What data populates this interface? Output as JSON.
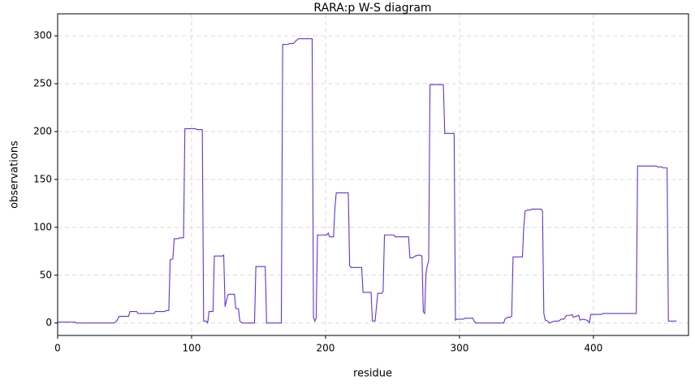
{
  "chart_data": {
    "type": "line",
    "title": "RARA:p W-S diagram",
    "xlabel": "residue",
    "ylabel": "observations",
    "xlim": [
      0,
      471
    ],
    "ylim": [
      -13,
      323
    ],
    "xticks": [
      0,
      100,
      200,
      300,
      400
    ],
    "yticks": [
      0,
      50,
      100,
      150,
      200,
      250,
      300
    ],
    "grid": true,
    "series": [
      {
        "name": "RARA:p",
        "color": "#6233d6",
        "x": [
          0,
          13,
          14,
          42,
          44,
          46,
          53,
          54,
          59,
          60,
          72,
          73,
          80,
          81,
          83,
          84,
          86,
          87,
          90,
          91,
          94,
          95,
          103,
          104,
          108,
          109,
          111,
          112,
          113,
          116,
          117,
          123,
          124,
          125,
          127,
          128,
          132,
          133,
          135,
          136,
          138,
          147,
          148,
          155,
          156,
          167,
          168,
          172,
          173,
          176,
          178,
          180,
          190,
          191,
          192,
          193,
          194,
          201,
          202,
          203,
          206,
          207,
          208,
          217,
          218,
          219,
          227,
          228,
          234,
          235,
          237,
          239,
          242,
          243,
          244,
          251,
          252,
          262,
          263,
          265,
          267,
          270,
          272,
          273,
          274,
          275,
          276,
          277,
          278,
          288,
          289,
          296,
          297,
          298,
          303,
          304,
          310,
          311,
          312,
          333,
          334,
          336,
          338,
          339,
          340,
          347,
          348,
          349,
          351,
          353,
          354,
          361,
          362,
          363,
          364,
          366,
          367,
          369,
          371,
          374,
          376,
          378,
          380,
          383,
          384,
          385,
          387,
          389,
          390,
          392,
          395,
          396,
          397,
          398,
          406,
          407,
          432,
          433,
          447,
          448,
          451,
          452,
          455,
          456,
          462
        ],
        "values": [
          1,
          1,
          0,
          0,
          2,
          7,
          7,
          12,
          12,
          10,
          10,
          12,
          12,
          13,
          13,
          66,
          67,
          88,
          88,
          89,
          89,
          203,
          203,
          202,
          202,
          2,
          2,
          0,
          12,
          12,
          70,
          70,
          71,
          17,
          29,
          30,
          30,
          15,
          15,
          2,
          0,
          0,
          59,
          59,
          0,
          0,
          291,
          291,
          292,
          292,
          295,
          297,
          297,
          6,
          2,
          5,
          92,
          92,
          94,
          90,
          90,
          120,
          136,
          136,
          60,
          58,
          58,
          32,
          32,
          2,
          2,
          31,
          31,
          33,
          92,
          92,
          90,
          90,
          68,
          68,
          70,
          71,
          70,
          12,
          10,
          52,
          60,
          65,
          249,
          249,
          198,
          198,
          3,
          4,
          4,
          5,
          5,
          2,
          0,
          0,
          4,
          6,
          6,
          7,
          69,
          69,
          100,
          117,
          118,
          118,
          119,
          119,
          117,
          10,
          3,
          2,
          0,
          1,
          2,
          2,
          4,
          4,
          8,
          8,
          9,
          6,
          7,
          8,
          3,
          4,
          3,
          2,
          0,
          9,
          9,
          10,
          10,
          164,
          164,
          163,
          163,
          162,
          162,
          2,
          2
        ]
      }
    ]
  }
}
